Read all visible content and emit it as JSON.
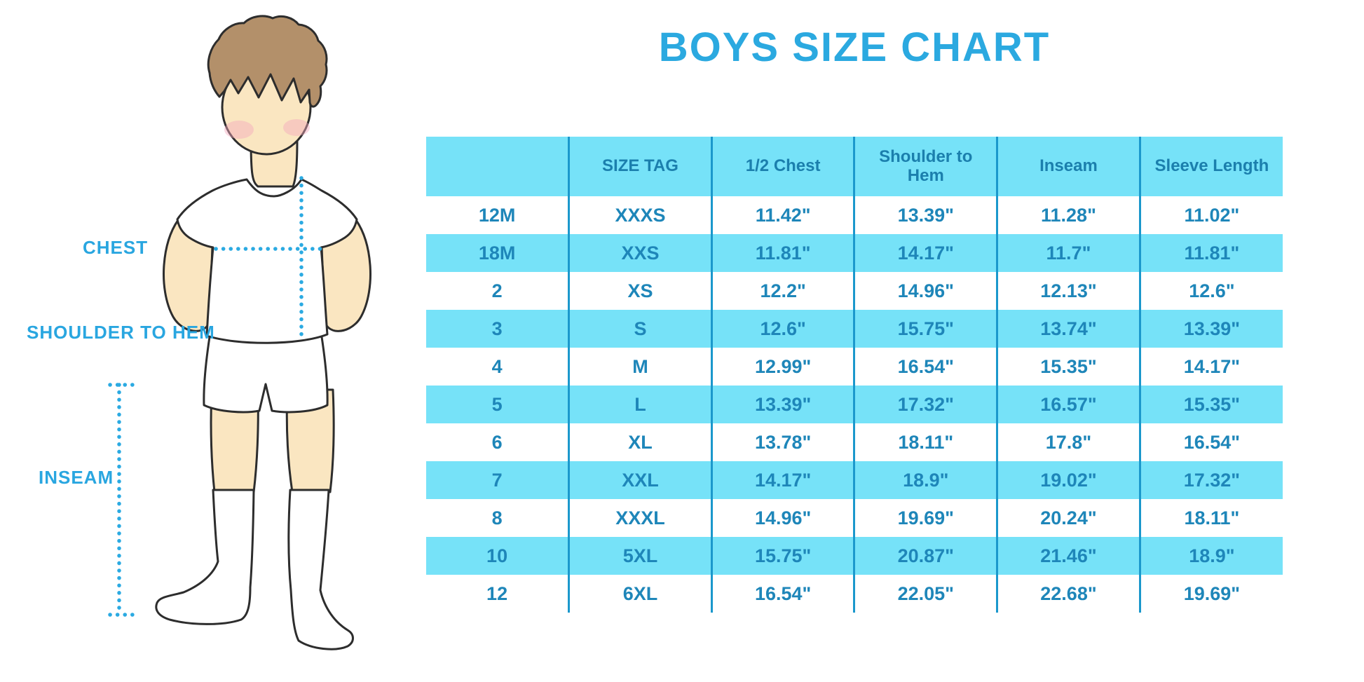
{
  "title": "BOYS SIZE CHART",
  "figure_labels": {
    "chest": "CHEST",
    "shoulder_to_hem": "SHOULDER TO HEM",
    "inseam": "INSEAM"
  },
  "colors": {
    "title_blue": "#2BA9E0",
    "label_blue": "#29A6E0",
    "dotted_blue": "#2BAAE2",
    "header_text": "#1B7FAD",
    "cell_text": "#1E86B9",
    "row_highlight": "#76E2F8",
    "column_border": "#1B98CC",
    "skin": "#FAE6C1",
    "hair": "#B3906A",
    "cheek": "#F5A8BC",
    "outline": "#2D2D2D"
  },
  "chart_data": {
    "type": "table",
    "title": "BOYS SIZE CHART",
    "columns": [
      "",
      "SIZE TAG",
      "1/2 Chest",
      "Shoulder to Hem",
      "Inseam",
      "Sleeve Length"
    ],
    "rows": [
      [
        "12M",
        "XXXS",
        "11.42\"",
        "13.39\"",
        "11.28\"",
        "11.02\""
      ],
      [
        "18M",
        "XXS",
        "11.81\"",
        "14.17\"",
        "11.7\"",
        "11.81\""
      ],
      [
        "2",
        "XS",
        "12.2\"",
        "14.96\"",
        "12.13\"",
        "12.6\""
      ],
      [
        "3",
        "S",
        "12.6\"",
        "15.75\"",
        "13.74\"",
        "13.39\""
      ],
      [
        "4",
        "M",
        "12.99\"",
        "16.54\"",
        "15.35\"",
        "14.17\""
      ],
      [
        "5",
        "L",
        "13.39\"",
        "17.32\"",
        "16.57\"",
        "15.35\""
      ],
      [
        "6",
        "XL",
        "13.78\"",
        "18.11\"",
        "17.8\"",
        "16.54\""
      ],
      [
        "7",
        "XXL",
        "14.17\"",
        "18.9\"",
        "19.02\"",
        "17.32\""
      ],
      [
        "8",
        "XXXL",
        "14.96\"",
        "19.69\"",
        "20.24\"",
        "18.11\""
      ],
      [
        "10",
        "5XL",
        "15.75\"",
        "20.87\"",
        "21.46\"",
        "18.9\""
      ],
      [
        "12",
        "6XL",
        "16.54\"",
        "22.05\"",
        "22.68\"",
        "19.69\""
      ]
    ]
  }
}
